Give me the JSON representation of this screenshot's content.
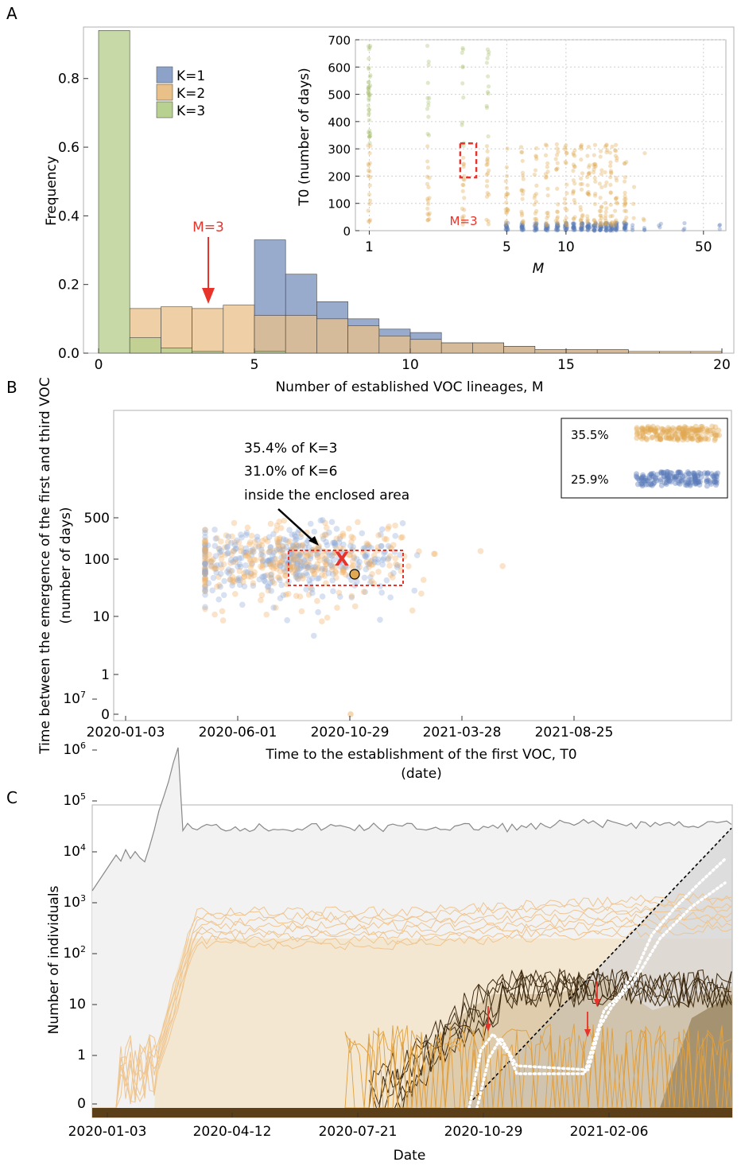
{
  "panel_labels": [
    "A",
    "B",
    "C"
  ],
  "chart_data": [
    {
      "panel": "A",
      "type": "bar",
      "xlabel": "Number of established VOC lineages, M",
      "ylabel": "Frequency",
      "xlim": [
        0,
        20
      ],
      "ylim": [
        0,
        0.95
      ],
      "x_ticks": [
        "0",
        "5",
        "10",
        "15",
        "20"
      ],
      "y_ticks": [
        "0.0",
        "0.2",
        "0.4",
        "0.6",
        "0.8"
      ],
      "bin_width": 1,
      "bin_starts": [
        0,
        1,
        2,
        3,
        4,
        5,
        6,
        7,
        8,
        9,
        10,
        11,
        12,
        13,
        14,
        15,
        16,
        17,
        18,
        19
      ],
      "legend_position": "top-left",
      "series": [
        {
          "name": "K=1",
          "color": "#8da2c8",
          "values": [
            0,
            0,
            0,
            0,
            0,
            0.33,
            0.23,
            0.15,
            0.1,
            0.07,
            0.06,
            0.03,
            0.03,
            0.02,
            0.01,
            0.01,
            0.01,
            0,
            0,
            0
          ]
        },
        {
          "name": "K=2",
          "color": "#e9c088",
          "values": [
            0,
            0.13,
            0.135,
            0.13,
            0.14,
            0.11,
            0.11,
            0.1,
            0.08,
            0.05,
            0.04,
            0.03,
            0.03,
            0.02,
            0.01,
            0.01,
            0.01,
            0.005,
            0.005,
            0.005
          ]
        },
        {
          "name": "K=3",
          "color": "#b8d090",
          "values": [
            0.94,
            0.045,
            0.015,
            0.005,
            0,
            0.005,
            0,
            0,
            0,
            0,
            0,
            0,
            0,
            0,
            0,
            0,
            0,
            0,
            0,
            0
          ]
        }
      ],
      "legend": [
        "K=1",
        "K=2",
        "K=3"
      ],
      "annotation": {
        "text": "M=3",
        "x": 3.5,
        "y": 0.15
      }
    },
    {
      "panel": "A-inset",
      "type": "scatter",
      "xlabel": "M",
      "ylabel": "T0 (number of days)",
      "x_scale": "log",
      "xlim": [
        0.85,
        65
      ],
      "ylim": [
        0,
        700
      ],
      "x_ticks": [
        "1",
        "5",
        "10",
        "50"
      ],
      "y_ticks": [
        "0",
        "100",
        "200",
        "300",
        "400",
        "500",
        "600",
        "700"
      ],
      "grid": true,
      "annotation": {
        "text": "M=3",
        "box_x": [
          2.9,
          3.5
        ],
        "box_y": [
          195,
          320
        ]
      },
      "series": [
        {
          "name": "K=1",
          "color": "#5a7ab8",
          "y_range": [
            0,
            30
          ],
          "x": [
            5,
            6,
            7,
            8,
            9,
            10,
            11,
            12,
            13,
            14,
            15,
            16,
            17,
            18,
            20,
            22,
            25,
            30,
            40,
            60
          ]
        },
        {
          "name": "K=2",
          "color": "#e0a850",
          "y_range": [
            20,
            320
          ],
          "x": [
            1,
            2,
            3,
            4,
            5,
            6,
            7,
            8,
            9,
            10,
            11,
            12,
            13,
            14,
            15,
            16,
            17,
            18,
            20,
            22,
            25
          ]
        },
        {
          "name": "K=3",
          "color": "#a8c070",
          "y_range": [
            300,
            680
          ],
          "x": [
            1,
            2,
            3,
            4
          ]
        }
      ]
    },
    {
      "panel": "B",
      "type": "scatter",
      "xlabel": "Time to the establishment of the first VOC, T0",
      "xlabel2": "(date)",
      "ylabel": "Time between the emergence of the first and third VOC",
      "ylabel2": "(number of days)",
      "x_ticks": [
        "2020-01-03",
        "2020-06-01",
        "2020-10-29",
        "2021-03-28",
        "2021-08-25"
      ],
      "y_ticks": [
        "0",
        "1",
        "10",
        "100",
        "500"
      ],
      "y_scale": "log",
      "annotations": [
        "35.4% of K=3",
        "31.0% of K=6",
        "inside the enclosed area"
      ],
      "legend": [
        {
          "label": "35.5%",
          "color": "#e0a850"
        },
        {
          "label": "25.9%",
          "color": "#5a7ab8"
        }
      ],
      "series": [
        {
          "name": "K=3",
          "color": "#8da8d8"
        },
        {
          "name": "K=6",
          "color": "#f0b060"
        }
      ],
      "box": {
        "x": [
          "2020-07-10",
          "2020-12-30"
        ],
        "y": [
          35,
          150
        ]
      },
      "marker_x": {
        "date": "2020-09-25",
        "value": 100
      },
      "marker_dot": {
        "date": "2020-10-10",
        "value": 55
      }
    },
    {
      "panel": "C",
      "type": "line",
      "xlabel": "Date",
      "ylabel": "Number of individuals",
      "y_scale": "log",
      "x_ticks": [
        "2020-01-03",
        "2020-04-12",
        "2020-07-21",
        "2020-10-29",
        "2021-02-06"
      ],
      "y_ticks": [
        "0",
        "1",
        "10",
        "10^2",
        "10^3",
        "10^4",
        "10^5",
        "10^6",
        "10^7"
      ]
    }
  ]
}
